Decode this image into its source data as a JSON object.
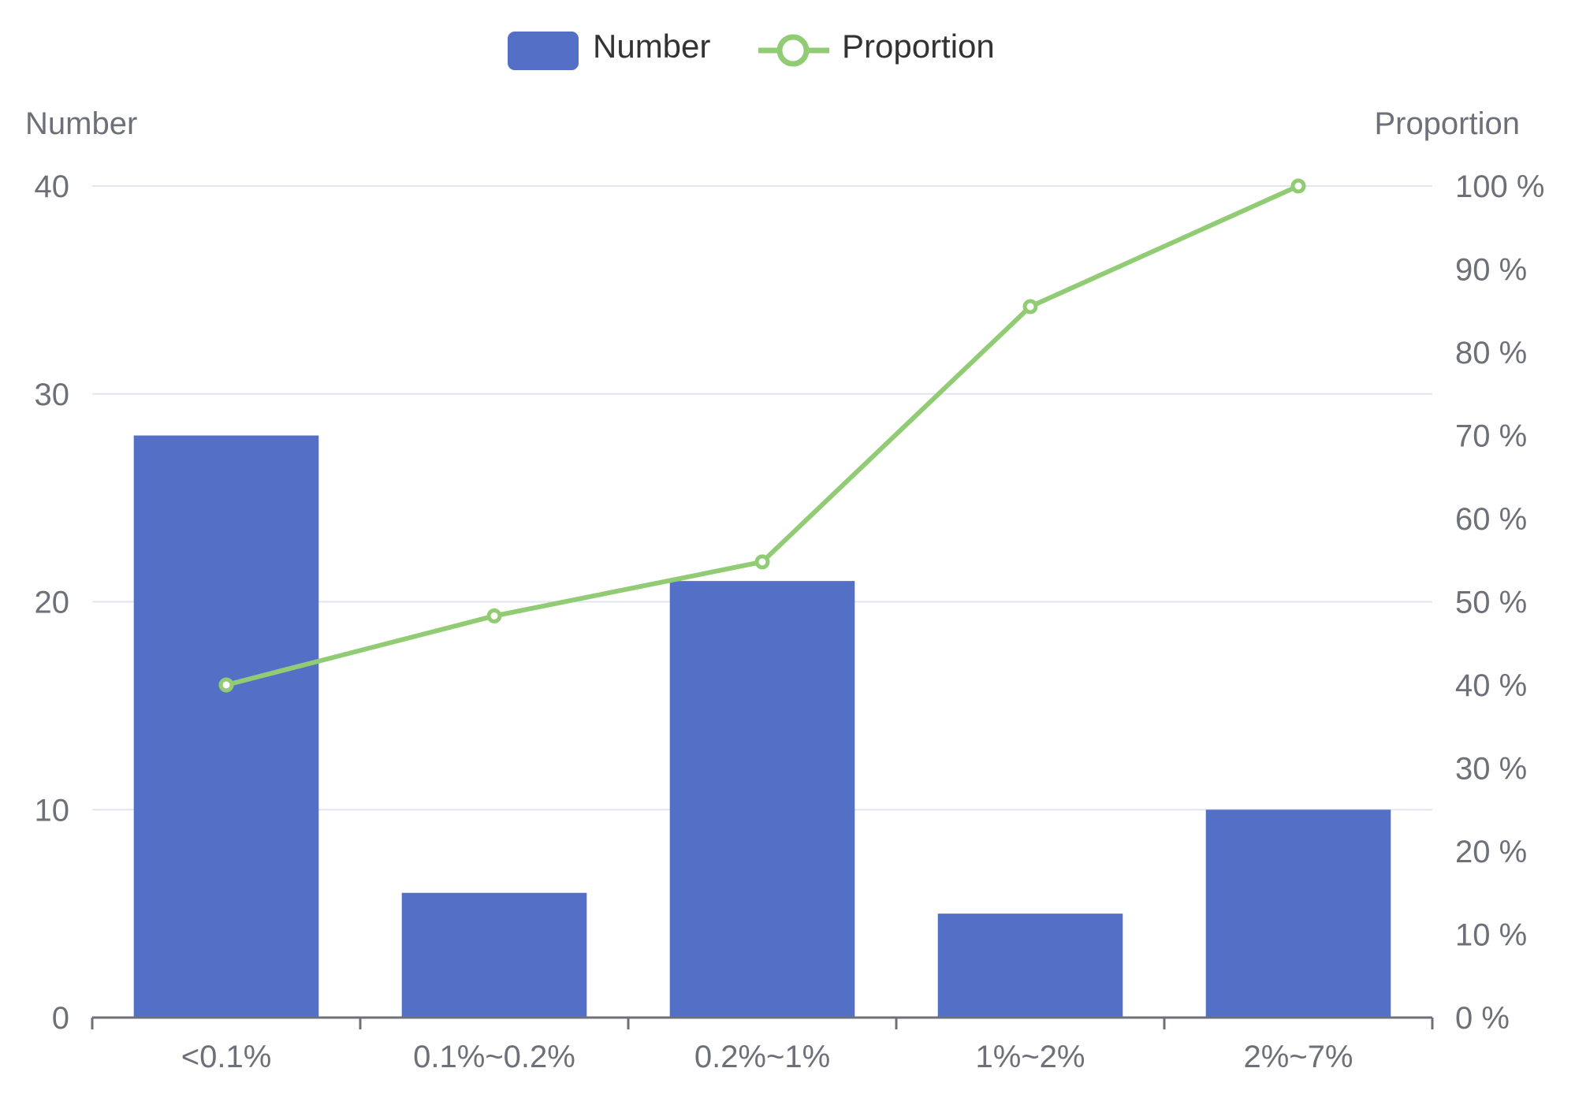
{
  "legend": {
    "bar_label": "Number",
    "line_label": "Proportion"
  },
  "colors": {
    "bar": "#5470c6",
    "line": "#91cc75",
    "grid": "#e0e6f1",
    "axis": "#6e7079"
  },
  "chart_data": {
    "type": "bar",
    "categories": [
      "<0.1%",
      "0.1%~0.2%",
      "0.2%~1%",
      "1%~2%",
      "2%~7%"
    ],
    "series": [
      {
        "name": "Number",
        "type": "bar",
        "axis": "left",
        "values": [
          28,
          6,
          21,
          5,
          10
        ]
      },
      {
        "name": "Proportion",
        "type": "line",
        "axis": "right",
        "values": [
          40,
          48.3,
          54.8,
          85.5,
          100
        ]
      }
    ],
    "y_left": {
      "label": "Number",
      "ylim": [
        0,
        40
      ],
      "ticks": [
        "0",
        "10",
        "20",
        "30",
        "40"
      ]
    },
    "y_right": {
      "label": "Proportion",
      "ylim": [
        0,
        100
      ],
      "ticks": [
        "0 %",
        "10 %",
        "20 %",
        "30 %",
        "40 %",
        "50 %",
        "60 %",
        "70 %",
        "80 %",
        "90 %",
        "100 %"
      ]
    },
    "grid": true,
    "legend_position": "top-center"
  }
}
